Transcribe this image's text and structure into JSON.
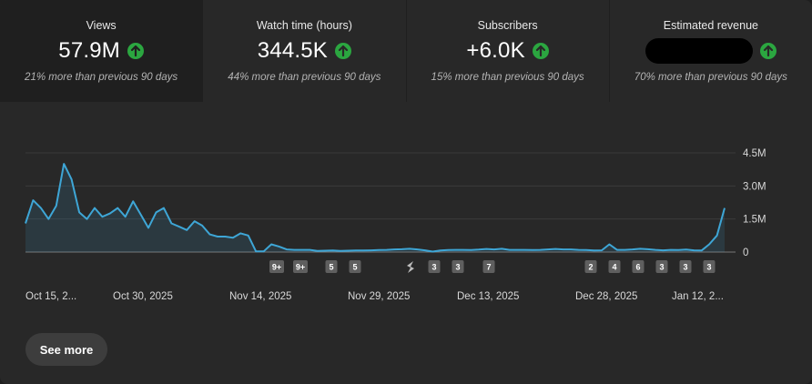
{
  "metrics": [
    {
      "label": "Views",
      "value": "57.9M",
      "sub": "21% more than previous 90 days",
      "trend_icon": "arrow-up-icon"
    },
    {
      "label": "Watch time (hours)",
      "value": "344.5K",
      "sub": "44% more than previous 90 days",
      "trend_icon": "arrow-up-icon"
    },
    {
      "label": "Subscribers",
      "value": "+6.0K",
      "sub": "15% more than previous 90 days",
      "trend_icon": "arrow-up-icon"
    },
    {
      "label": "Estimated revenue",
      "value": "",
      "sub": "70% more than previous 90 days",
      "trend_icon": "arrow-up-icon"
    }
  ],
  "colors": {
    "line": "#3ea6d6",
    "trend_up": "#2ba640",
    "badge": "#5f5f5f"
  },
  "see_more_label": "See more",
  "chart_data": {
    "type": "area",
    "title": "",
    "xlabel": "",
    "ylabel": "",
    "ylim": [
      0,
      4500000
    ],
    "y_ticks": [
      "0",
      "1.5M",
      "3.0M",
      "4.5M"
    ],
    "x_tick_labels": [
      "Oct 15, 2...",
      "Oct 30, 2025",
      "Nov 14, 2025",
      "Nov 29, 2025",
      "Dec 13, 2025",
      "Dec 28, 2025",
      "Jan 12, 2..."
    ],
    "series": [
      {
        "name": "Views",
        "values": [
          1300000,
          2350000,
          2000000,
          1500000,
          2100000,
          4000000,
          3300000,
          1800000,
          1500000,
          2000000,
          1600000,
          1750000,
          2000000,
          1600000,
          2300000,
          1700000,
          1100000,
          1800000,
          2000000,
          1300000,
          1150000,
          1000000,
          1400000,
          1200000,
          800000,
          700000,
          700000,
          650000,
          850000,
          750000,
          30000,
          30000,
          350000,
          250000,
          120000,
          100000,
          100000,
          100000,
          50000,
          60000,
          70000,
          50000,
          60000,
          70000,
          70000,
          80000,
          90000,
          100000,
          120000,
          130000,
          150000,
          120000,
          80000,
          20000,
          70000,
          90000,
          100000,
          100000,
          90000,
          110000,
          140000,
          120000,
          150000,
          100000,
          100000,
          100000,
          90000,
          100000,
          120000,
          140000,
          120000,
          120000,
          100000,
          90000,
          70000,
          80000,
          350000,
          100000,
          100000,
          120000,
          150000,
          130000,
          100000,
          80000,
          100000,
          90000,
          110000,
          80000,
          70000,
          350000,
          750000,
          2000000
        ]
      }
    ],
    "annotations": [
      "9+",
      "9+",
      "5",
      "5",
      "shorts",
      "3",
      "3",
      "7",
      "2",
      "4",
      "6",
      "3",
      "3",
      "3"
    ]
  }
}
